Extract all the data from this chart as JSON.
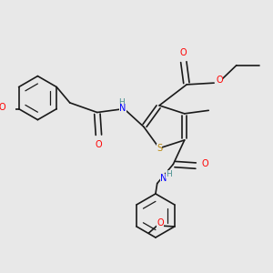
{
  "bg_color": "#e8e8e8",
  "bond_color": "#1a1a1a",
  "atom_colors": {
    "O": "#ff0000",
    "N": "#0000ff",
    "S": "#b8860b",
    "H": "#4a9090",
    "C": "#1a1a1a"
  },
  "fig_size": [
    3.0,
    3.0
  ],
  "dpi": 100
}
